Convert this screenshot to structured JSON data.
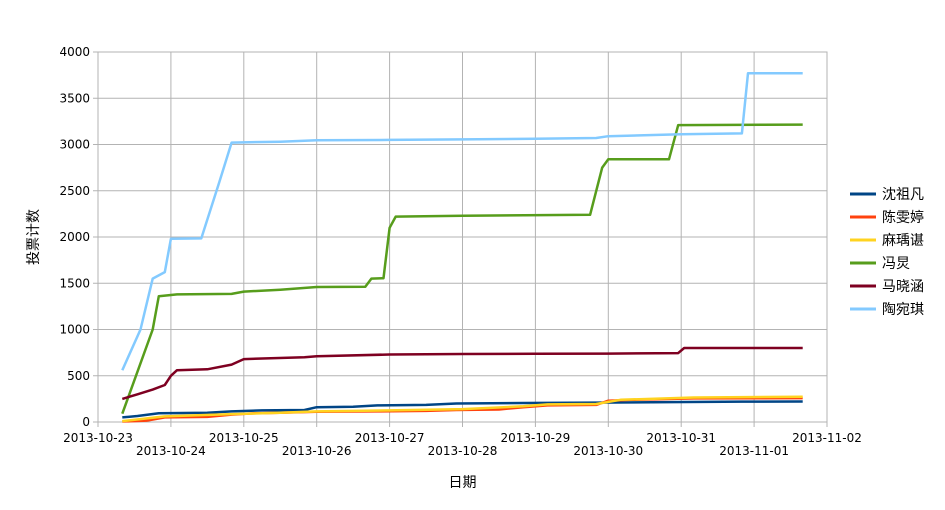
{
  "chart_data": {
    "type": "line",
    "title": "",
    "xlabel": "日期",
    "ylabel": "投票计数",
    "ylim": [
      0,
      4000
    ],
    "yticks": [
      0,
      500,
      1000,
      1500,
      2000,
      2500,
      3000,
      3500,
      4000
    ],
    "xlim": [
      "2013-10-23",
      "2013-11-02"
    ],
    "xticks": [
      "2013-10-23",
      "2013-10-24",
      "2013-10-25",
      "2013-10-26",
      "2013-10-27",
      "2013-10-28",
      "2013-10-29",
      "2013-10-30",
      "2013-10-31",
      "2013-11-01",
      "2013-11-02"
    ],
    "grid": true,
    "legend_position": "right",
    "series": [
      {
        "name": "沈祖凡",
        "color": "#004586",
        "points": [
          [
            "2013-10-23 08:00",
            50
          ],
          [
            "2013-10-23 13:00",
            65
          ],
          [
            "2013-10-23 20:00",
            95
          ],
          [
            "2013-10-24 12:00",
            100
          ],
          [
            "2013-10-24 20:00",
            115
          ],
          [
            "2013-10-25 06:00",
            125
          ],
          [
            "2013-10-25 20:00",
            130
          ],
          [
            "2013-10-26 00:00",
            160
          ],
          [
            "2013-10-26 12:00",
            165
          ],
          [
            "2013-10-26 20:00",
            180
          ],
          [
            "2013-10-27 12:00",
            185
          ],
          [
            "2013-10-27 22:00",
            200
          ],
          [
            "2013-10-28 20:00",
            205
          ],
          [
            "2013-10-29 20:00",
            210
          ],
          [
            "2013-10-30 20:00",
            215
          ],
          [
            "2013-10-31 20:00",
            220
          ],
          [
            "2013-11-01 16:00",
            222
          ]
        ]
      },
      {
        "name": "陈雯婷",
        "color": "#ff420e",
        "points": [
          [
            "2013-10-23 08:00",
            5
          ],
          [
            "2013-10-23 16:00",
            15
          ],
          [
            "2013-10-23 22:00",
            50
          ],
          [
            "2013-10-24 12:00",
            55
          ],
          [
            "2013-10-24 20:00",
            80
          ],
          [
            "2013-10-25 04:00",
            95
          ],
          [
            "2013-10-25 12:00",
            100
          ],
          [
            "2013-10-26 00:00",
            110
          ],
          [
            "2013-10-26 20:00",
            115
          ],
          [
            "2013-10-27 12:00",
            120
          ],
          [
            "2013-10-27 22:00",
            130
          ],
          [
            "2013-10-28 12:00",
            135
          ],
          [
            "2013-10-28 20:00",
            160
          ],
          [
            "2013-10-29 04:00",
            180
          ],
          [
            "2013-10-29 20:00",
            185
          ],
          [
            "2013-10-30 00:00",
            230
          ],
          [
            "2013-10-30 08:00",
            240
          ],
          [
            "2013-10-31 04:00",
            255
          ],
          [
            "2013-11-01 16:00",
            258
          ]
        ]
      },
      {
        "name": "麻瑀谌",
        "color": "#ffd320",
        "points": [
          [
            "2013-10-23 08:00",
            10
          ],
          [
            "2013-10-23 22:00",
            60
          ],
          [
            "2013-10-24 20:00",
            85
          ],
          [
            "2013-10-25 12:00",
            100
          ],
          [
            "2013-10-26 00:00",
            115
          ],
          [
            "2013-10-27 00:00",
            125
          ],
          [
            "2013-10-28 00:00",
            140
          ],
          [
            "2013-10-28 20:00",
            170
          ],
          [
            "2013-10-29 04:00",
            190
          ],
          [
            "2013-10-29 20:00",
            195
          ],
          [
            "2013-10-30 04:00",
            240
          ],
          [
            "2013-10-31 04:00",
            265
          ],
          [
            "2013-11-01 16:00",
            272
          ]
        ]
      },
      {
        "name": "冯炅",
        "color": "#579d1c",
        "points": [
          [
            "2013-10-23 08:00",
            90
          ],
          [
            "2013-10-23 18:00",
            1000
          ],
          [
            "2013-10-23 20:00",
            1360
          ],
          [
            "2013-10-24 02:00",
            1380
          ],
          [
            "2013-10-24 20:00",
            1385
          ],
          [
            "2013-10-25 00:00",
            1410
          ],
          [
            "2013-10-25 12:00",
            1430
          ],
          [
            "2013-10-26 00:00",
            1460
          ],
          [
            "2013-10-26 16:00",
            1462
          ],
          [
            "2013-10-26 18:00",
            1550
          ],
          [
            "2013-10-26 22:00",
            1555
          ],
          [
            "2013-10-27 00:00",
            2100
          ],
          [
            "2013-10-27 02:00",
            2220
          ],
          [
            "2013-10-28 00:00",
            2230
          ],
          [
            "2013-10-29 18:00",
            2240
          ],
          [
            "2013-10-29 22:00",
            2750
          ],
          [
            "2013-10-30 00:00",
            2840
          ],
          [
            "2013-10-30 20:00",
            2840
          ],
          [
            "2013-10-30 23:00",
            3210
          ],
          [
            "2013-11-01 16:00",
            3215
          ]
        ]
      },
      {
        "name": "马晓涵",
        "color": "#7e0021",
        "points": [
          [
            "2013-10-23 08:00",
            250
          ],
          [
            "2013-10-23 13:00",
            300
          ],
          [
            "2013-10-23 18:00",
            350
          ],
          [
            "2013-10-23 22:00",
            400
          ],
          [
            "2013-10-24 00:00",
            500
          ],
          [
            "2013-10-24 02:00",
            560
          ],
          [
            "2013-10-24 12:00",
            570
          ],
          [
            "2013-10-24 20:00",
            620
          ],
          [
            "2013-10-25 00:00",
            680
          ],
          [
            "2013-10-25 20:00",
            700
          ],
          [
            "2013-10-26 00:00",
            710
          ],
          [
            "2013-10-27 00:00",
            730
          ],
          [
            "2013-10-28 00:00",
            735
          ],
          [
            "2013-10-29 00:00",
            737
          ],
          [
            "2013-10-30 00:00",
            740
          ],
          [
            "2013-10-30 23:00",
            745
          ],
          [
            "2013-10-31 01:00",
            800
          ],
          [
            "2013-11-01 16:00",
            800
          ]
        ]
      },
      {
        "name": "陶宛琪",
        "color": "#83caff",
        "points": [
          [
            "2013-10-23 08:00",
            560
          ],
          [
            "2013-10-23 14:00",
            1000
          ],
          [
            "2013-10-23 18:00",
            1550
          ],
          [
            "2013-10-23 22:00",
            1620
          ],
          [
            "2013-10-24 00:00",
            1980
          ],
          [
            "2013-10-24 10:00",
            1985
          ],
          [
            "2013-10-24 16:00",
            2600
          ],
          [
            "2013-10-24 20:00",
            3020
          ],
          [
            "2013-10-25 12:00",
            3030
          ],
          [
            "2013-10-26 00:00",
            3045
          ],
          [
            "2013-10-27 00:00",
            3050
          ],
          [
            "2013-10-28 00:00",
            3055
          ],
          [
            "2013-10-29 00:00",
            3062
          ],
          [
            "2013-10-29 20:00",
            3070
          ],
          [
            "2013-10-30 00:00",
            3090
          ],
          [
            "2013-10-31 00:00",
            3110
          ],
          [
            "2013-10-31 20:00",
            3120
          ],
          [
            "2013-10-31 22:00",
            3770
          ],
          [
            "2013-11-01 16:00",
            3770
          ]
        ]
      }
    ]
  }
}
